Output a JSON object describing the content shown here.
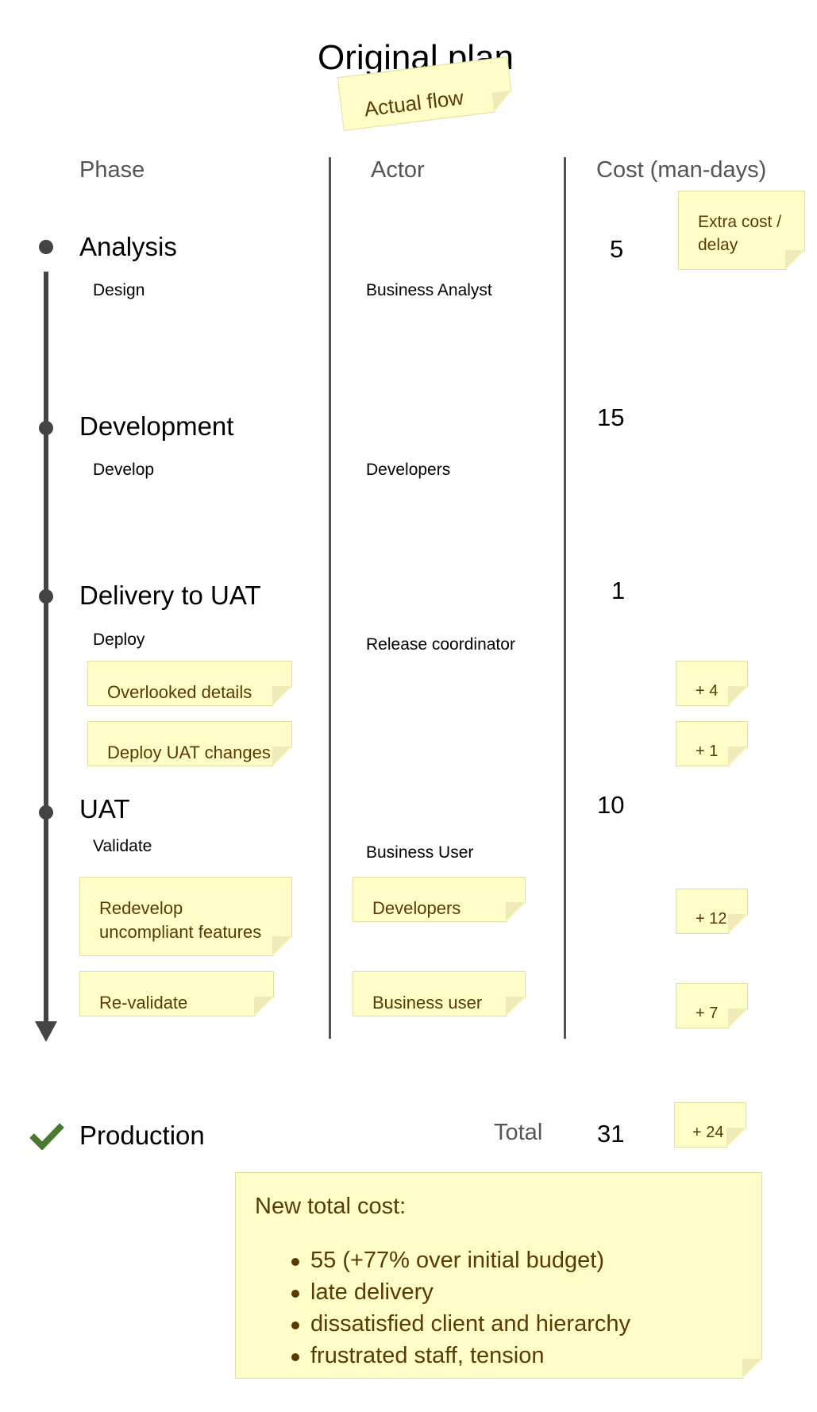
{
  "title": "Original plan",
  "title_note": "Actual flow",
  "columns": {
    "phase": "Phase",
    "actor": "Actor",
    "cost": "Cost (man-days)"
  },
  "extra_note": "Extra cost /\ndelay",
  "phases": [
    {
      "name": "Analysis",
      "task": "Design",
      "actor": "Business Analyst",
      "cost": "5"
    },
    {
      "name": "Development",
      "task": "Develop",
      "actor": "Developers",
      "cost": "15"
    },
    {
      "name": "Delivery to UAT",
      "task": "Deploy",
      "actor": "Release coordinator",
      "cost": "1"
    },
    {
      "name": "UAT",
      "task": "Validate",
      "actor": "Business User",
      "cost": "10"
    }
  ],
  "extra_tasks": [
    {
      "task": "Overlooked details",
      "extra": "+ 4"
    },
    {
      "task": "Deploy UAT changes",
      "extra": "+ 1"
    },
    {
      "task": "Redevelop\nuncompliant features",
      "actor": "Developers",
      "extra": "+ 12"
    },
    {
      "task": "Re-validate",
      "actor": "Business user",
      "extra": "+ 7"
    }
  ],
  "production": {
    "label": "Production",
    "total_label": "Total",
    "total": "31",
    "extra_total": "+ 24"
  },
  "summary": {
    "heading": "New total cost:",
    "items": [
      "55 (+77% over initial budget)",
      "late delivery",
      "dissatisfied client and hierarchy",
      "frustrated staff, tension"
    ]
  },
  "colors": {
    "note_bg": "#fffec8",
    "note_text": "#5a3a00",
    "line": "#444444",
    "check": "#4a7a2e"
  }
}
